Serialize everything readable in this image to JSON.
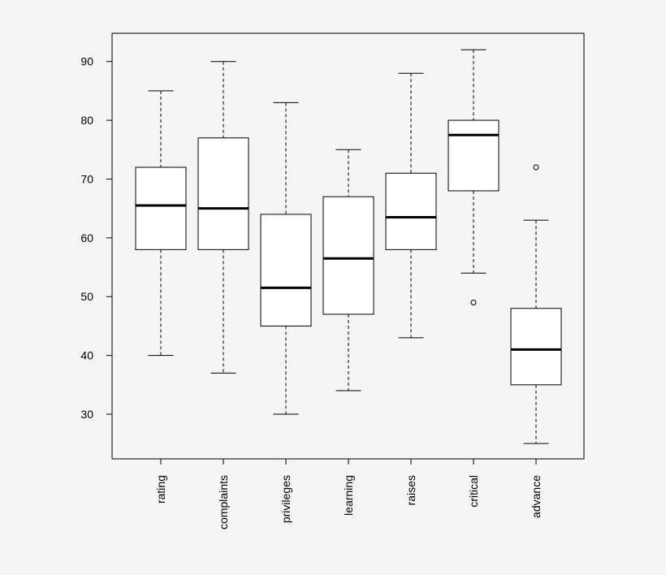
{
  "chart_data": {
    "type": "boxplot",
    "title": "",
    "xlabel": "",
    "ylabel": "",
    "ylim": [
      22.4,
      94.8
    ],
    "yticks": [
      30,
      40,
      50,
      60,
      70,
      80,
      90
    ],
    "grid": false,
    "categories": [
      "rating",
      "complaints",
      "privileges",
      "learning",
      "raises",
      "critical",
      "advance"
    ],
    "boxes": [
      {
        "min": 40,
        "q1": 58,
        "median": 65.5,
        "q3": 72,
        "max": 85,
        "outliers": []
      },
      {
        "min": 37,
        "q1": 58,
        "median": 65,
        "q3": 77,
        "max": 90,
        "outliers": []
      },
      {
        "min": 30,
        "q1": 45,
        "median": 51.5,
        "q3": 64,
        "max": 83,
        "outliers": []
      },
      {
        "min": 34,
        "q1": 47,
        "median": 56.5,
        "q3": 67,
        "max": 75,
        "outliers": []
      },
      {
        "min": 43,
        "q1": 58,
        "median": 63.5,
        "q3": 71,
        "max": 88,
        "outliers": []
      },
      {
        "min": 54,
        "q1": 68,
        "median": 77.5,
        "q3": 80,
        "max": 92,
        "outliers": [
          49
        ]
      },
      {
        "min": 25,
        "q1": 35,
        "median": 41,
        "q3": 48,
        "max": 63,
        "outliers": [
          72
        ]
      }
    ],
    "colors": {
      "background": "#f5f5f5",
      "box_fill": "#ffffff",
      "stroke": "#000000"
    }
  }
}
